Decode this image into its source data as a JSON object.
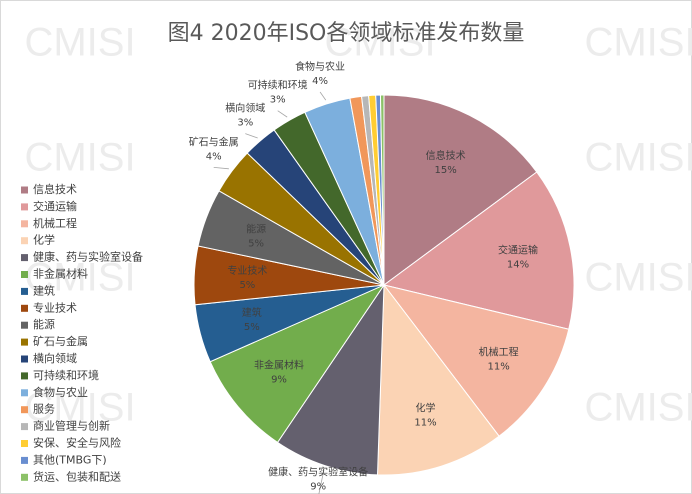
{
  "chart_data": {
    "type": "pie",
    "title": "图4 2020年ISO各领域标准发布数量",
    "watermark": "CMISI",
    "categories": [
      "信息技术",
      "交通运输",
      "机械工程",
      "化学",
      "健康、药与实验室设备",
      "非金属材料",
      "建筑",
      "专业技术",
      "能源",
      "矿石与金属",
      "横向领域",
      "可持续和环境",
      "食物与农业",
      "服务",
      "商业管理与创新",
      "安保、安全与风险",
      "其他(TMBG下)",
      "货运、包装和配送"
    ],
    "values": [
      15,
      14,
      11,
      11,
      9,
      9,
      5,
      5,
      5,
      4,
      3,
      3,
      4,
      1,
      0.6,
      0.6,
      0.4,
      0.3
    ],
    "value_labels": [
      "15%",
      "14%",
      "11%",
      "11%",
      "9%",
      "9%",
      "5%",
      "5%",
      "5%",
      "4%",
      "3%",
      "3%",
      "4%",
      null,
      null,
      null,
      null,
      null
    ],
    "colors": [
      "#b07c85",
      "#e0999b",
      "#f4b5a0",
      "#fbd3b4",
      "#64606e",
      "#72ad4c",
      "#255e91",
      "#9e480e",
      "#636363",
      "#997300",
      "#264478",
      "#43682b",
      "#7cafdd",
      "#f1975a",
      "#b7b7b7",
      "#ffcd33",
      "#698ed0",
      "#8cc168"
    ],
    "legend": "left"
  }
}
